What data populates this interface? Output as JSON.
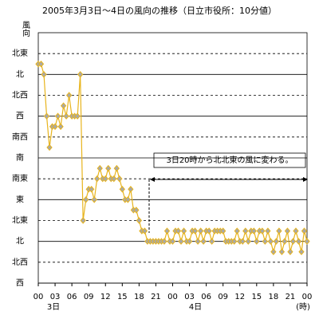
{
  "chart_data": {
    "type": "line",
    "title": "2005年3月3日～4日の風向の推移（日立市役所：10分値）",
    "y_label": "風向",
    "x_unit": "(時)",
    "day_labels": [
      "3日",
      "4日"
    ],
    "annotation": "3日20時から北北東の風に変わる。",
    "grid": true,
    "xlim": [
      0,
      48
    ],
    "ylim": [
      0,
      12
    ],
    "xticks": [
      {
        "value": 0,
        "label": "00"
      },
      {
        "value": 3,
        "label": "03"
      },
      {
        "value": 6,
        "label": "06"
      },
      {
        "value": 9,
        "label": "09"
      },
      {
        "value": 12,
        "label": "12"
      },
      {
        "value": 15,
        "label": "15"
      },
      {
        "value": 18,
        "label": "18"
      },
      {
        "value": 21,
        "label": "21"
      },
      {
        "value": 24,
        "label": "00"
      },
      {
        "value": 27,
        "label": "03"
      },
      {
        "value": 30,
        "label": "06"
      },
      {
        "value": 33,
        "label": "09"
      },
      {
        "value": 36,
        "label": "12"
      },
      {
        "value": 39,
        "label": "15"
      },
      {
        "value": 42,
        "label": "18"
      },
      {
        "value": 45,
        "label": "21"
      },
      {
        "value": 48,
        "label": "00"
      }
    ],
    "yticks": [
      {
        "value": 0,
        "label": "西"
      },
      {
        "value": 1,
        "label": "北西"
      },
      {
        "value": 2,
        "label": "北"
      },
      {
        "value": 3,
        "label": "北東"
      },
      {
        "value": 4,
        "label": "東"
      },
      {
        "value": 5,
        "label": "南東"
      },
      {
        "value": 6,
        "label": "南"
      },
      {
        "value": 7,
        "label": "南西"
      },
      {
        "value": 8,
        "label": "西"
      },
      {
        "value": 9,
        "label": "北西"
      },
      {
        "value": 10,
        "label": "北"
      },
      {
        "value": 11,
        "label": "北東"
      }
    ],
    "x": [
      0,
      0.5,
      1,
      1.5,
      2,
      2.5,
      3,
      3.5,
      4,
      4.5,
      5,
      5.5,
      6,
      6.5,
      7,
      7.5,
      8,
      8.5,
      9,
      9.5,
      10,
      10.5,
      11,
      11.5,
      12,
      12.5,
      13,
      13.5,
      14,
      14.5,
      15,
      15.5,
      16,
      16.5,
      17,
      17.5,
      18,
      18.5,
      19,
      19.5,
      20,
      20.5,
      21,
      21.5,
      22,
      22.5,
      23,
      23.5,
      24,
      24.5,
      25,
      25.5,
      26,
      26.5,
      27,
      27.5,
      28,
      28.5,
      29,
      29.5,
      30,
      30.5,
      31,
      31.5,
      32,
      32.5,
      33,
      33.5,
      34,
      34.5,
      35,
      35.5,
      36,
      36.5,
      37,
      37.5,
      38,
      38.5,
      39,
      39.5,
      40,
      40.5,
      41,
      41.5,
      42,
      42.5,
      43,
      43.5,
      44,
      44.5,
      45,
      45.5,
      46,
      46.5,
      47,
      47.5,
      48
    ],
    "series": [
      {
        "color": "#e8b41c",
        "values": [
          10.5,
          10.5,
          10,
          8,
          6.5,
          7.5,
          7.5,
          8,
          7.5,
          8.5,
          8,
          9,
          8,
          8,
          8,
          10,
          3,
          4,
          4.5,
          4.5,
          4,
          5,
          5.5,
          5,
          5,
          5.5,
          5,
          5,
          5.5,
          5,
          4.5,
          4,
          4,
          4.5,
          3.5,
          3.5,
          3,
          2.5,
          2.5,
          2,
          2,
          2,
          2,
          2,
          2,
          2,
          2.5,
          2,
          2,
          2.5,
          2.5,
          2,
          2.5,
          2,
          2,
          2.5,
          2.5,
          2,
          2.5,
          2,
          2.5,
          2.5,
          2,
          2.5,
          2.5,
          2.5,
          2.5,
          2,
          2,
          2,
          2,
          2.5,
          2,
          2,
          2.5,
          2,
          2.5,
          2.5,
          2,
          2.5,
          2.5,
          2,
          2.5,
          2,
          1.5,
          2,
          2.5,
          1.5,
          2,
          2.5,
          1.5,
          2,
          2.5,
          2,
          1.5,
          2.5,
          2
        ]
      }
    ]
  }
}
